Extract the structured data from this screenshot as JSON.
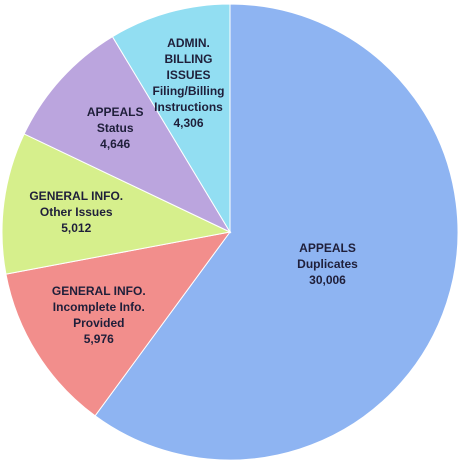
{
  "chart_data": {
    "type": "pie",
    "categories": [
      "APPEALS\nDuplicates",
      "GENERAL INFO.\nIncomplete Info.\nProvided",
      "GENERAL INFO.\nOther Issues",
      "APPEALS\nStatus",
      "ADMIN.\nBILLING\nISSUES\nFiling/Billing\nInstructions"
    ],
    "values": [
      30006,
      5976,
      5012,
      4646,
      4306
    ],
    "value_labels": [
      "30,006",
      "5,976",
      "5,012",
      "4,646",
      "4,306"
    ],
    "colors": [
      "#8eb4f2",
      "#f28e8c",
      "#d6ef8c",
      "#bba5de",
      "#92def2"
    ]
  }
}
